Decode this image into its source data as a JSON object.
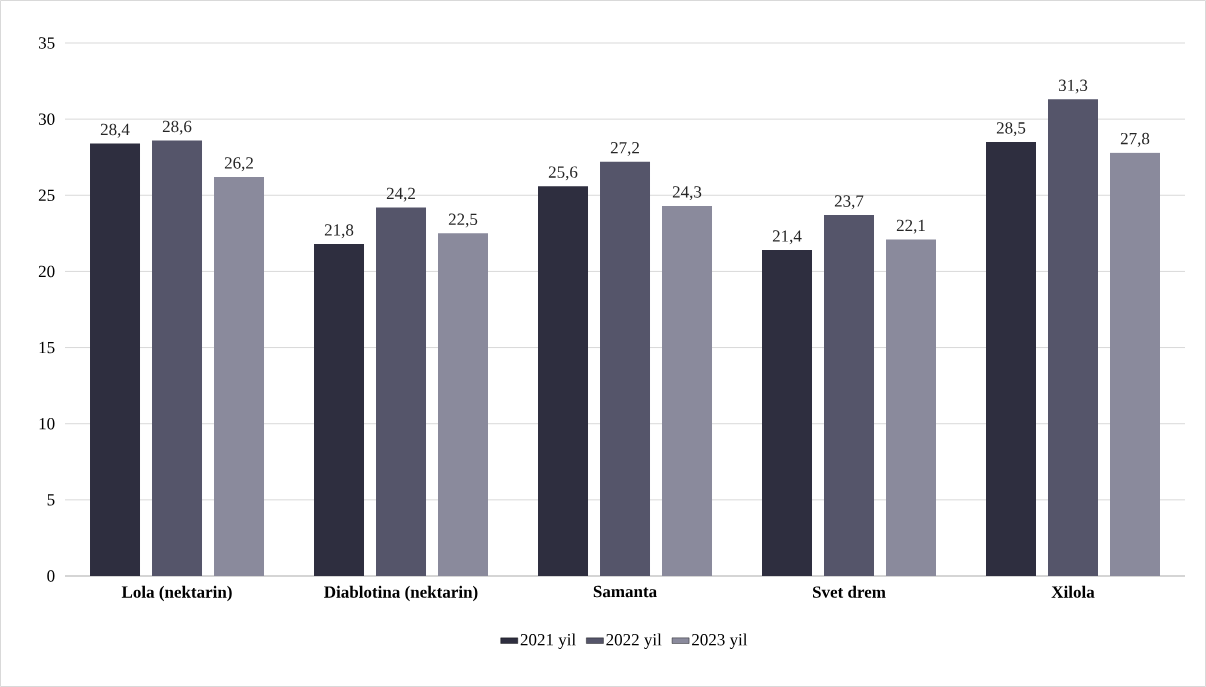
{
  "chart_data": {
    "type": "bar",
    "categories": [
      "Lola (nektarin)",
      "Diablotina (nektarin)",
      "Samanta",
      "Svet drem",
      "Xilola"
    ],
    "series": [
      {
        "name": "2021 yil",
        "color": "#2e2e3f",
        "values": [
          28.4,
          21.8,
          25.6,
          21.4,
          28.5
        ],
        "value_labels": [
          "28,4",
          "21,8",
          "25,6",
          "21,4",
          "28,5"
        ]
      },
      {
        "name": "2022 yil",
        "color": "#55556a",
        "values": [
          28.6,
          24.2,
          27.2,
          23.7,
          31.3
        ],
        "value_labels": [
          "28,6",
          "24,2",
          "27,2",
          "23,7",
          "31,3"
        ]
      },
      {
        "name": "2023 yil",
        "color": "#8a8a9c",
        "values": [
          26.2,
          22.5,
          24.3,
          22.1,
          27.8
        ],
        "value_labels": [
          "26,2",
          "22,5",
          "24,3",
          "22,1",
          "27,8"
        ]
      }
    ],
    "ylim": [
      0,
      35
    ],
    "yticks": [
      0,
      5,
      10,
      15,
      20,
      25,
      30,
      35
    ],
    "grid": "y",
    "legend": "bottom"
  }
}
